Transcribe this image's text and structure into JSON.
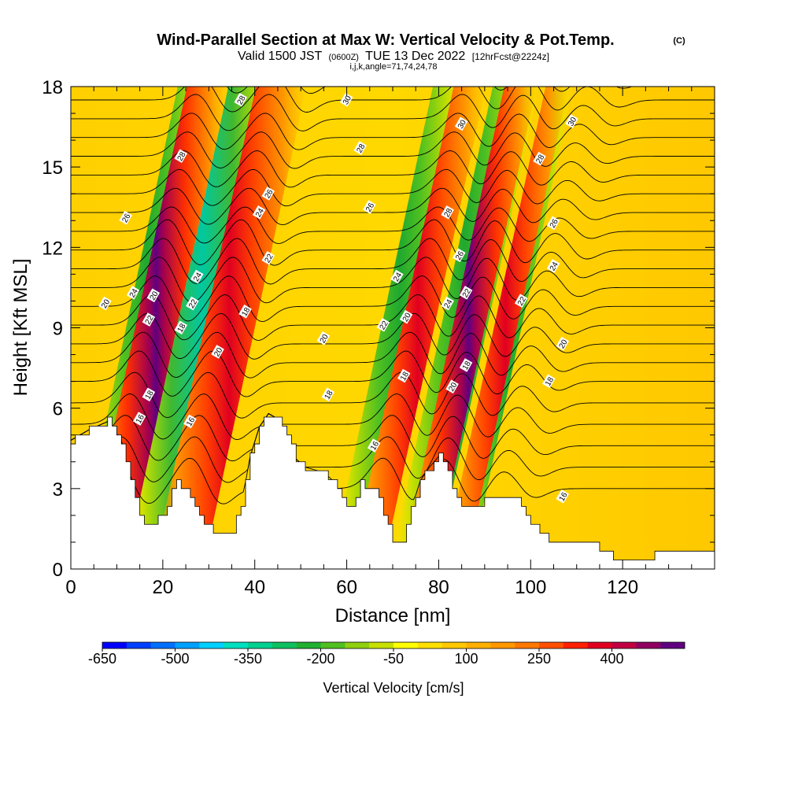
{
  "chart_data": {
    "type": "heatmap",
    "title": "Wind-Parallel Section at Max W: Vertical Velocity & Pot.Temp.",
    "title_tag": "(C)",
    "subtitle_prefix": "Valid 1500 JST",
    "subtitle_utc": "(0600Z)",
    "subtitle_date": "TUE 13 Dec 2022",
    "subtitle_run": "[12hrFcst@2224z]",
    "subtitle_grid": "i,j,k,angle=71,74,24,78",
    "xlabel": "Distance [nm]",
    "ylabel": "Height [Kft MSL]",
    "xlim": [
      0,
      140
    ],
    "ylim": [
      0,
      18
    ],
    "xticks": [
      "0",
      "20",
      "40",
      "60",
      "80",
      "100",
      "120"
    ],
    "yticks": [
      "0",
      "3",
      "6",
      "9",
      "12",
      "15",
      "18"
    ],
    "colorbar": {
      "label": "Vertical Velocity [cm/s]",
      "range": [
        -650,
        500
      ],
      "tick_labels": [
        "-650",
        "-500",
        "-350",
        "-200",
        "-50",
        "100",
        "250",
        "400"
      ],
      "colors": [
        "#0000ff",
        "#0040ff",
        "#0070ff",
        "#00a0ff",
        "#00d0ff",
        "#00e0c0",
        "#00d090",
        "#10c060",
        "#20b030",
        "#50c020",
        "#90d010",
        "#c8e000",
        "#ffff00",
        "#ffe000",
        "#ffc800",
        "#ffb000",
        "#ff9800",
        "#ff7800",
        "#ff5000",
        "#ff2000",
        "#e00020",
        "#c00040",
        "#900060",
        "#600080"
      ]
    },
    "downdraft_axes_nm": [
      12,
      26,
      70,
      94
    ],
    "updraft_axes_nm": [
      17,
      33,
      74,
      85
    ],
    "pot_temp_contour_labels": [
      {
        "value": "16",
        "x": 15,
        "y": 5.6
      },
      {
        "value": "18",
        "x": 17,
        "y": 6.5
      },
      {
        "value": "22",
        "x": 17,
        "y": 9.3
      },
      {
        "value": "20",
        "x": 18,
        "y": 10.2
      },
      {
        "value": "24",
        "x": 13.6,
        "y": 10.3
      },
      {
        "value": "20",
        "x": 7.5,
        "y": 9.9
      },
      {
        "value": "26",
        "x": 12,
        "y": 13.1
      },
      {
        "value": "28",
        "x": 24,
        "y": 15.4
      },
      {
        "value": "24",
        "x": 27.5,
        "y": 10.9
      },
      {
        "value": "22",
        "x": 26.5,
        "y": 9.9
      },
      {
        "value": "18",
        "x": 24,
        "y": 9.0
      },
      {
        "value": "16",
        "x": 26,
        "y": 5.5
      },
      {
        "value": "20",
        "x": 32,
        "y": 8.1
      },
      {
        "value": "18",
        "x": 38,
        "y": 9.6
      },
      {
        "value": "28",
        "x": 37,
        "y": 17.5
      },
      {
        "value": "26",
        "x": 43,
        "y": 14.0
      },
      {
        "value": "24",
        "x": 41,
        "y": 13.3
      },
      {
        "value": "22",
        "x": 43,
        "y": 11.6
      },
      {
        "value": "30",
        "x": 60,
        "y": 17.5
      },
      {
        "value": "28",
        "x": 63,
        "y": 15.7
      },
      {
        "value": "26",
        "x": 65,
        "y": 13.5
      },
      {
        "value": "20",
        "x": 55,
        "y": 8.6
      },
      {
        "value": "18",
        "x": 56,
        "y": 6.5
      },
      {
        "value": "16",
        "x": 66,
        "y": 4.6
      },
      {
        "value": "24",
        "x": 71,
        "y": 10.9
      },
      {
        "value": "22",
        "x": 68,
        "y": 9.1
      },
      {
        "value": "20",
        "x": 73,
        "y": 9.4
      },
      {
        "value": "18",
        "x": 72.5,
        "y": 7.2
      },
      {
        "value": "30",
        "x": 85,
        "y": 16.6
      },
      {
        "value": "28",
        "x": 82,
        "y": 13.3
      },
      {
        "value": "26",
        "x": 84.5,
        "y": 11.7
      },
      {
        "value": "24",
        "x": 82,
        "y": 9.9
      },
      {
        "value": "22",
        "x": 86,
        "y": 10.3
      },
      {
        "value": "18",
        "x": 86,
        "y": 7.6
      },
      {
        "value": "20",
        "x": 83,
        "y": 6.8
      },
      {
        "value": "30",
        "x": 109,
        "y": 16.7
      },
      {
        "value": "28",
        "x": 102,
        "y": 15.3
      },
      {
        "value": "26",
        "x": 105,
        "y": 12.9
      },
      {
        "value": "24",
        "x": 105,
        "y": 11.3
      },
      {
        "value": "22",
        "x": 98,
        "y": 10.0
      },
      {
        "value": "20",
        "x": 107,
        "y": 8.4
      },
      {
        "value": "18",
        "x": 104,
        "y": 7.0
      },
      {
        "value": "16",
        "x": 107,
        "y": 2.7
      }
    ]
  }
}
